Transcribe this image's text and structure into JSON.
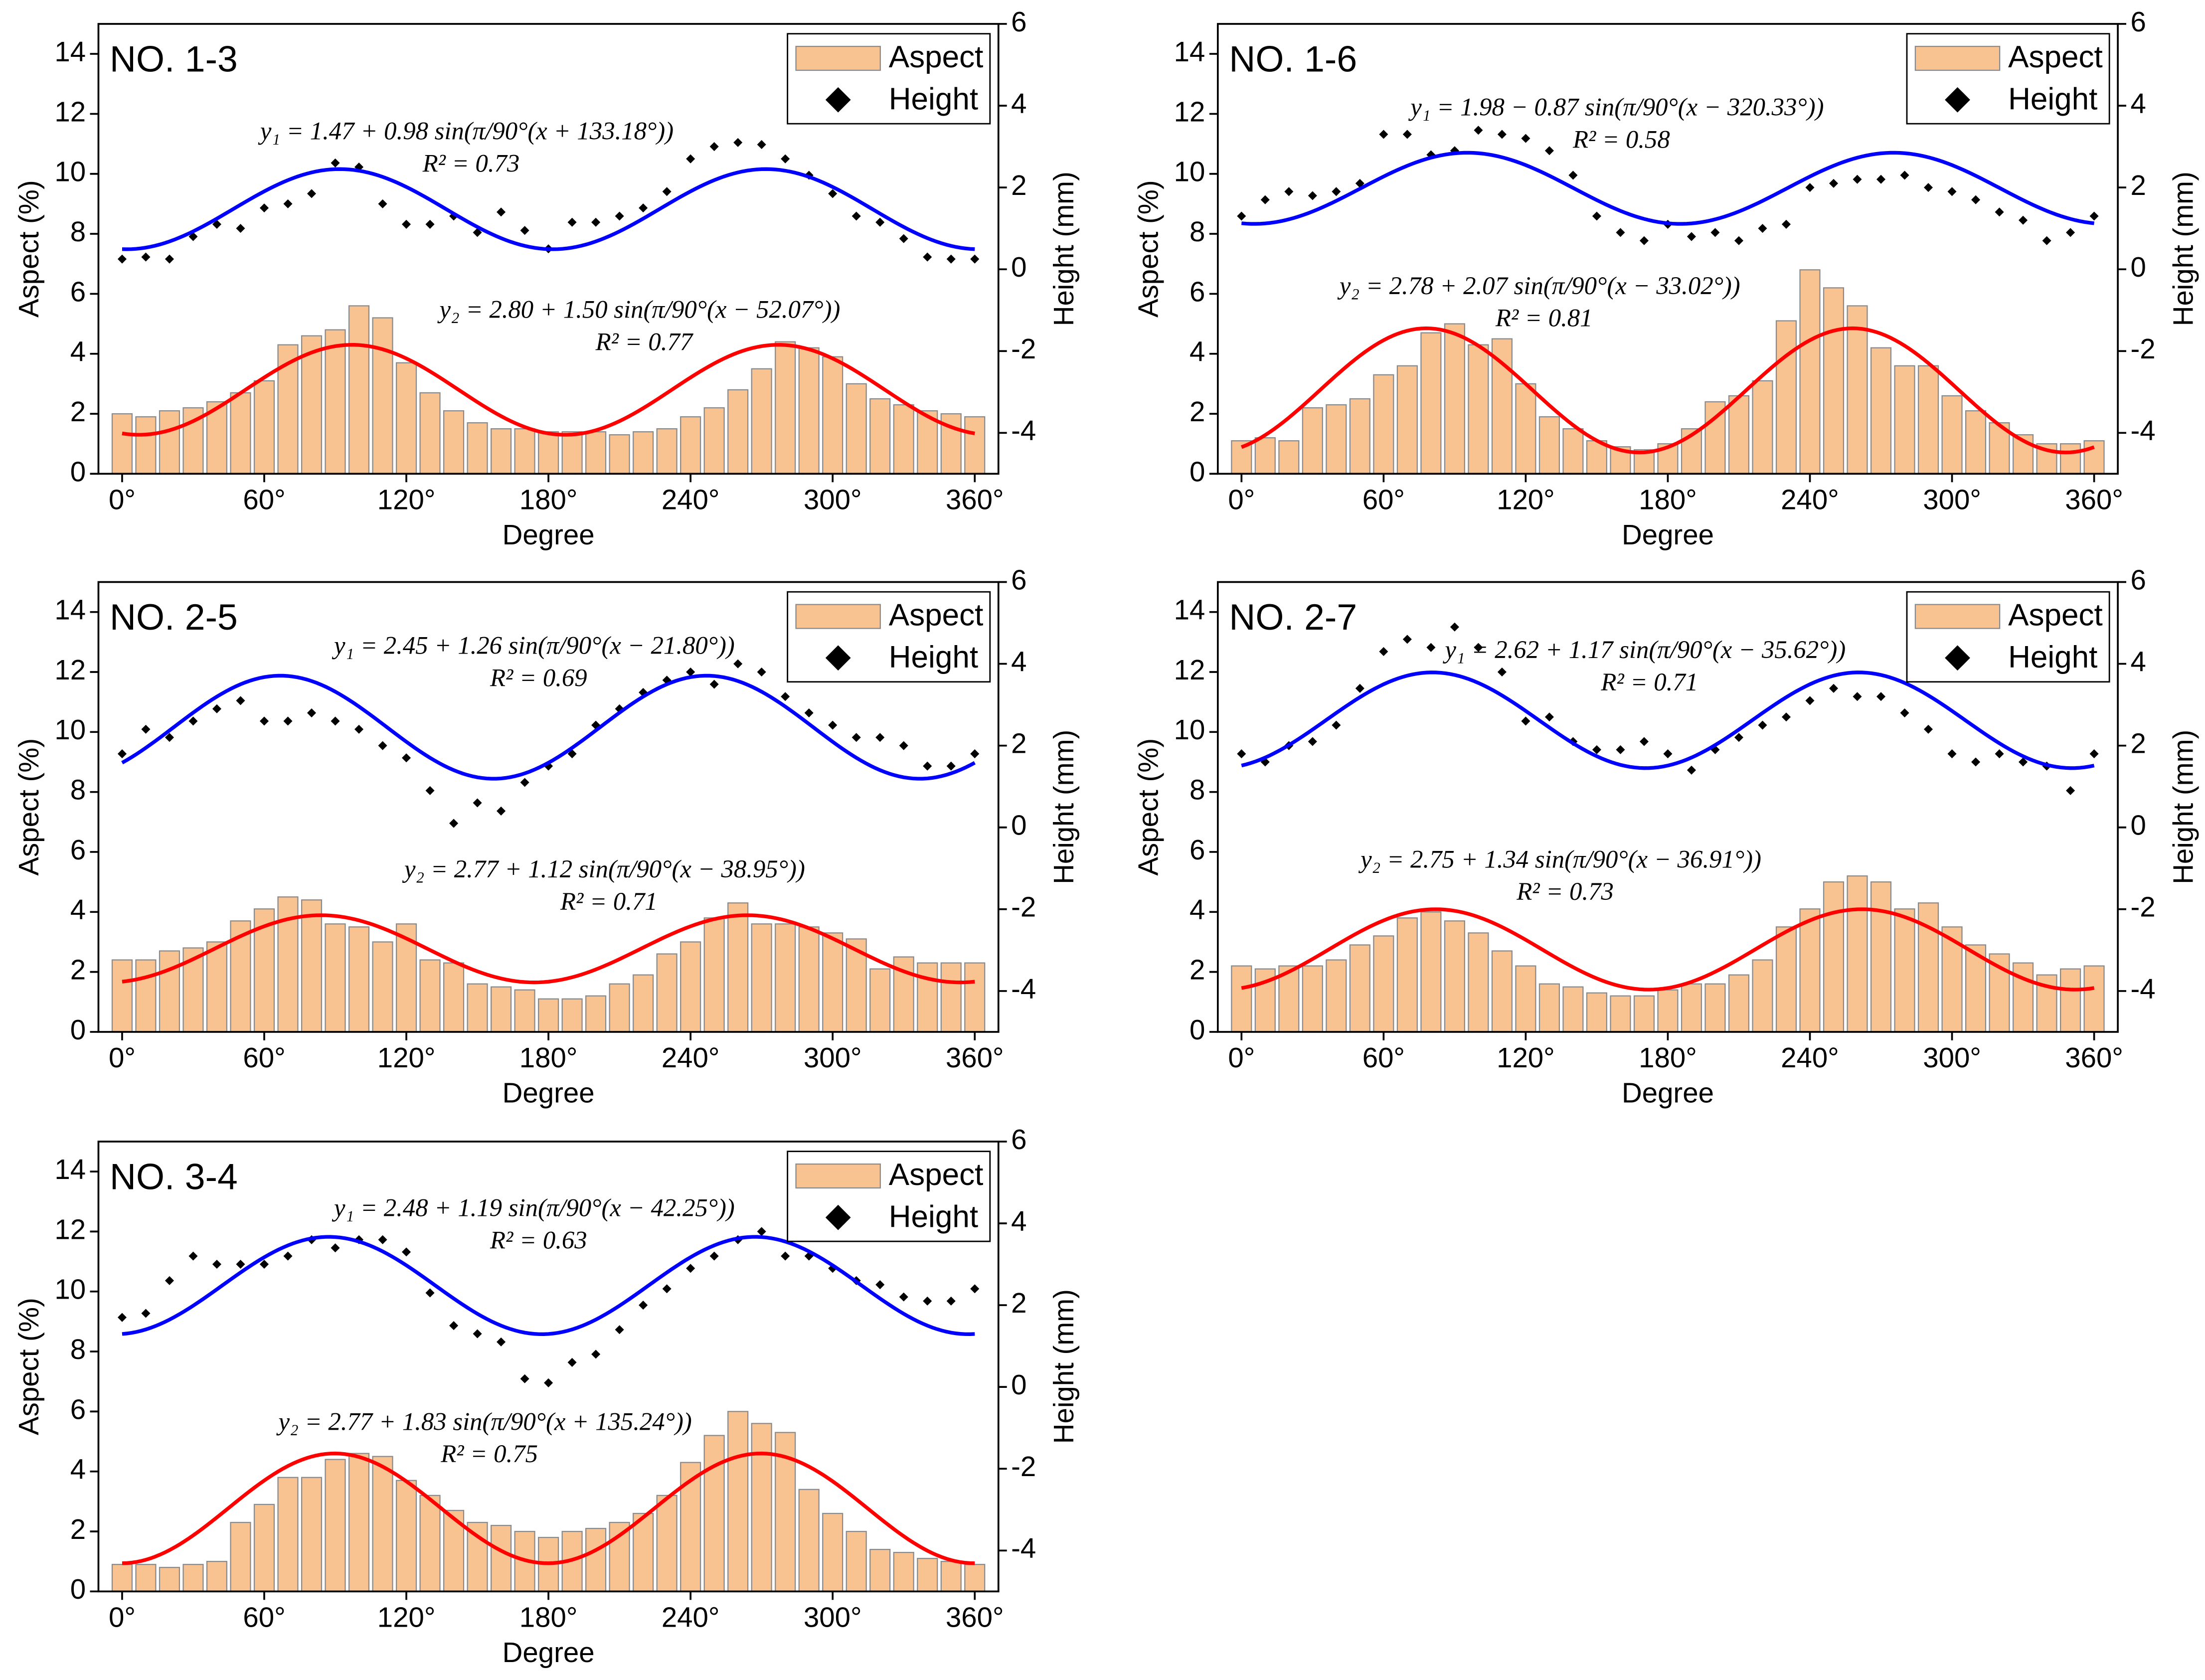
{
  "chart_data": [
    {
      "type": "bar-scatter",
      "title": "NO. 1-3",
      "xlabel": "Degree",
      "ylabel": "Aspect (%)",
      "y2label": "Height (mm)",
      "x": [
        0,
        10,
        20,
        30,
        40,
        50,
        60,
        70,
        80,
        90,
        100,
        110,
        120,
        130,
        140,
        150,
        160,
        170,
        180,
        190,
        200,
        210,
        220,
        230,
        240,
        250,
        260,
        270,
        280,
        290,
        300,
        310,
        320,
        330,
        340,
        350,
        360
      ],
      "xlim": [
        -10,
        370
      ],
      "xticks": [
        {
          "value": 0,
          "label": "0°"
        },
        {
          "value": 60,
          "label": "60°"
        },
        {
          "value": 120,
          "label": "120°"
        },
        {
          "value": 180,
          "label": "180°"
        },
        {
          "value": 240,
          "label": "240°"
        },
        {
          "value": 300,
          "label": "300°"
        },
        {
          "value": 360,
          "label": "360°"
        }
      ],
      "ylim": [
        0,
        15
      ],
      "yticks": [
        0,
        2,
        4,
        6,
        8,
        10,
        12,
        14
      ],
      "y2lim": [
        -5,
        6
      ],
      "y2ticks": [
        -4,
        -2,
        0,
        2,
        4,
        6
      ],
      "legend": "upper right",
      "series": [
        {
          "name": "Aspect",
          "type": "bar",
          "color": "#f9c291",
          "values": [
            2.0,
            1.9,
            2.1,
            2.2,
            2.4,
            2.7,
            3.1,
            4.3,
            4.6,
            4.8,
            5.6,
            5.2,
            3.7,
            2.7,
            2.1,
            1.7,
            1.5,
            1.5,
            1.4,
            1.4,
            1.4,
            1.3,
            1.4,
            1.5,
            1.9,
            2.2,
            2.8,
            3.5,
            4.4,
            4.2,
            3.9,
            3.0,
            2.5,
            2.3,
            2.1,
            2.0,
            1.9
          ]
        },
        {
          "name": "Height",
          "type": "scatter",
          "color": "#000000",
          "axis": "y2",
          "values": [
            0.25,
            0.3,
            0.25,
            0.8,
            1.1,
            1.0,
            1.5,
            1.6,
            1.85,
            2.6,
            2.5,
            1.6,
            1.1,
            1.1,
            1.3,
            0.9,
            1.4,
            0.95,
            0.5,
            1.15,
            1.15,
            1.3,
            1.5,
            1.9,
            2.7,
            3.0,
            3.1,
            3.05,
            2.7,
            2.3,
            1.85,
            1.3,
            1.15,
            0.75,
            0.3,
            0.25,
            0.25
          ]
        }
      ],
      "fits": [
        {
          "axis": "y2",
          "color": "#0000ff",
          "equation": "y₁ = 1.47 + 0.98 sin(π/90°(x + 133.18°))",
          "r2_label": "R² = 0.73",
          "intercept": 1.47,
          "amplitude": 0.98,
          "divisor": 90,
          "shift": 133.18
        },
        {
          "axis": "y",
          "color": "#ff0000",
          "equation": "y₂ = 2.80 + 1.50 sin(π/90°(x − 52.07°))",
          "r2_label": "R² = 0.77",
          "intercept": 2.8,
          "amplitude": 1.5,
          "divisor": 90,
          "shift": -52.07
        }
      ]
    },
    {
      "type": "bar-scatter",
      "title": "NO. 1-6",
      "xlabel": "Degree",
      "ylabel": "Aspect (%)",
      "y2label": "Height (mm)",
      "x": [
        0,
        10,
        20,
        30,
        40,
        50,
        60,
        70,
        80,
        90,
        100,
        110,
        120,
        130,
        140,
        150,
        160,
        170,
        180,
        190,
        200,
        210,
        220,
        230,
        240,
        250,
        260,
        270,
        280,
        290,
        300,
        310,
        320,
        330,
        340,
        350,
        360
      ],
      "xlim": [
        -10,
        370
      ],
      "xticks": [
        {
          "value": 0,
          "label": "0°"
        },
        {
          "value": 60,
          "label": "60°"
        },
        {
          "value": 120,
          "label": "120°"
        },
        {
          "value": 180,
          "label": "180°"
        },
        {
          "value": 240,
          "label": "240°"
        },
        {
          "value": 300,
          "label": "300°"
        },
        {
          "value": 360,
          "label": "360°"
        }
      ],
      "ylim": [
        0,
        15
      ],
      "yticks": [
        0,
        2,
        4,
        6,
        8,
        10,
        12,
        14
      ],
      "y2lim": [
        -5,
        6
      ],
      "y2ticks": [
        -4,
        -2,
        0,
        2,
        4,
        6
      ],
      "legend": "upper right",
      "series": [
        {
          "name": "Aspect",
          "type": "bar",
          "color": "#f9c291",
          "values": [
            1.1,
            1.2,
            1.1,
            2.2,
            2.3,
            2.5,
            3.3,
            3.6,
            4.7,
            5.0,
            4.3,
            4.5,
            3.0,
            1.9,
            1.5,
            1.1,
            0.9,
            0.8,
            1.0,
            1.5,
            2.4,
            2.6,
            3.1,
            5.1,
            6.8,
            6.2,
            5.6,
            4.2,
            3.6,
            3.6,
            2.6,
            2.1,
            1.7,
            1.3,
            1.0,
            1.0,
            1.1
          ]
        },
        {
          "name": "Height",
          "type": "scatter",
          "color": "#000000",
          "axis": "y2",
          "values": [
            1.3,
            1.7,
            1.9,
            1.8,
            1.9,
            2.1,
            3.3,
            3.3,
            2.8,
            2.9,
            3.4,
            3.3,
            3.2,
            2.9,
            2.3,
            1.3,
            0.9,
            0.7,
            1.1,
            0.8,
            0.9,
            0.7,
            1.0,
            1.1,
            2.0,
            2.1,
            2.2,
            2.2,
            2.3,
            2.0,
            1.9,
            1.7,
            1.4,
            1.2,
            0.7,
            0.9,
            1.3
          ]
        }
      ],
      "fits": [
        {
          "axis": "y2",
          "color": "#0000ff",
          "equation": "y₁ = 1.98 − 0.87 sin(π/90°(x − 320.33°))",
          "r2_label": "R² = 0.58",
          "intercept": 1.98,
          "amplitude": -0.87,
          "divisor": 90,
          "shift": -320.33
        },
        {
          "axis": "y",
          "color": "#ff0000",
          "equation": "y₂ = 2.78 + 2.07 sin(π/90°(x − 33.02°))",
          "r2_label": "R² = 0.81",
          "intercept": 2.78,
          "amplitude": 2.07,
          "divisor": 90,
          "shift": -33.02
        }
      ]
    },
    {
      "type": "bar-scatter",
      "title": "NO. 2-5",
      "xlabel": "Degree",
      "ylabel": "Aspect (%)",
      "y2label": "Height (mm)",
      "x": [
        0,
        10,
        20,
        30,
        40,
        50,
        60,
        70,
        80,
        90,
        100,
        110,
        120,
        130,
        140,
        150,
        160,
        170,
        180,
        190,
        200,
        210,
        220,
        230,
        240,
        250,
        260,
        270,
        280,
        290,
        300,
        310,
        320,
        330,
        340,
        350,
        360
      ],
      "xlim": [
        -10,
        370
      ],
      "xticks": [
        {
          "value": 0,
          "label": "0°"
        },
        {
          "value": 60,
          "label": "60°"
        },
        {
          "value": 120,
          "label": "120°"
        },
        {
          "value": 180,
          "label": "180°"
        },
        {
          "value": 240,
          "label": "240°"
        },
        {
          "value": 300,
          "label": "300°"
        },
        {
          "value": 360,
          "label": "360°"
        }
      ],
      "ylim": [
        0,
        15
      ],
      "yticks": [
        0,
        2,
        4,
        6,
        8,
        10,
        12,
        14
      ],
      "y2lim": [
        -5,
        6
      ],
      "y2ticks": [
        -4,
        -2,
        0,
        2,
        4,
        6
      ],
      "legend": "upper right",
      "series": [
        {
          "name": "Aspect",
          "type": "bar",
          "color": "#f9c291",
          "values": [
            2.4,
            2.4,
            2.7,
            2.8,
            3.0,
            3.7,
            4.1,
            4.5,
            4.4,
            3.6,
            3.5,
            3.0,
            3.6,
            2.4,
            2.3,
            1.6,
            1.5,
            1.4,
            1.1,
            1.1,
            1.2,
            1.6,
            1.9,
            2.6,
            3.0,
            3.8,
            4.3,
            3.6,
            3.6,
            3.5,
            3.3,
            3.1,
            2.1,
            2.5,
            2.3,
            2.3,
            2.3
          ]
        },
        {
          "name": "Height",
          "type": "scatter",
          "color": "#000000",
          "axis": "y2",
          "values": [
            1.8,
            2.4,
            2.2,
            2.6,
            2.9,
            3.1,
            2.6,
            2.6,
            2.8,
            2.6,
            2.4,
            2.0,
            1.7,
            0.9,
            0.1,
            0.6,
            0.4,
            1.1,
            1.5,
            1.8,
            2.5,
            2.9,
            3.3,
            3.6,
            3.8,
            3.5,
            4.0,
            3.8,
            3.2,
            2.8,
            2.5,
            2.2,
            2.2,
            2.0,
            1.5,
            1.5,
            1.8
          ]
        }
      ],
      "fits": [
        {
          "axis": "y2",
          "color": "#0000ff",
          "equation": "y₁ = 2.45 + 1.26 sin(π/90°(x − 21.80°))",
          "r2_label": "R² = 0.69",
          "intercept": 2.45,
          "amplitude": 1.26,
          "divisor": 90,
          "shift": -21.8
        },
        {
          "axis": "y",
          "color": "#ff0000",
          "equation": "y₂ = 2.77 + 1.12 sin(π/90°(x − 38.95°))",
          "r2_label": "R² = 0.71",
          "intercept": 2.77,
          "amplitude": 1.12,
          "divisor": 90,
          "shift": -38.95
        }
      ]
    },
    {
      "type": "bar-scatter",
      "title": "NO. 2-7",
      "xlabel": "Degree",
      "ylabel": "Aspect (%)",
      "y2label": "Height (mm)",
      "x": [
        0,
        10,
        20,
        30,
        40,
        50,
        60,
        70,
        80,
        90,
        100,
        110,
        120,
        130,
        140,
        150,
        160,
        170,
        180,
        190,
        200,
        210,
        220,
        230,
        240,
        250,
        260,
        270,
        280,
        290,
        300,
        310,
        320,
        330,
        340,
        350,
        360
      ],
      "xlim": [
        -10,
        370
      ],
      "xticks": [
        {
          "value": 0,
          "label": "0°"
        },
        {
          "value": 60,
          "label": "60°"
        },
        {
          "value": 120,
          "label": "120°"
        },
        {
          "value": 180,
          "label": "180°"
        },
        {
          "value": 240,
          "label": "240°"
        },
        {
          "value": 300,
          "label": "300°"
        },
        {
          "value": 360,
          "label": "360°"
        }
      ],
      "ylim": [
        0,
        15
      ],
      "yticks": [
        0,
        2,
        4,
        6,
        8,
        10,
        12,
        14
      ],
      "y2lim": [
        -5,
        6
      ],
      "y2ticks": [
        -4,
        -2,
        0,
        2,
        4,
        6
      ],
      "legend": "upper right",
      "series": [
        {
          "name": "Aspect",
          "type": "bar",
          "color": "#f9c291",
          "values": [
            2.2,
            2.1,
            2.2,
            2.2,
            2.4,
            2.9,
            3.2,
            3.8,
            4.0,
            3.7,
            3.3,
            2.7,
            2.2,
            1.6,
            1.5,
            1.3,
            1.2,
            1.2,
            1.4,
            1.6,
            1.6,
            1.9,
            2.4,
            3.5,
            4.1,
            5.0,
            5.2,
            5.0,
            4.1,
            4.3,
            3.5,
            2.9,
            2.6,
            2.3,
            1.9,
            2.1,
            2.2
          ]
        },
        {
          "name": "Height",
          "type": "scatter",
          "color": "#000000",
          "axis": "y2",
          "values": [
            1.8,
            1.6,
            2.0,
            2.1,
            2.5,
            3.4,
            4.3,
            4.6,
            4.4,
            4.9,
            4.4,
            3.8,
            2.6,
            2.7,
            2.1,
            1.9,
            1.9,
            2.1,
            1.8,
            1.4,
            1.9,
            2.2,
            2.5,
            2.7,
            3.1,
            3.4,
            3.2,
            3.2,
            2.8,
            2.4,
            1.8,
            1.6,
            1.8,
            1.6,
            1.5,
            0.9,
            1.8
          ]
        }
      ],
      "fits": [
        {
          "axis": "y2",
          "color": "#0000ff",
          "equation": "y₁ = 2.62 + 1.17 sin(π/90°(x − 35.62°))",
          "r2_label": "R² = 0.71",
          "intercept": 2.62,
          "amplitude": 1.17,
          "divisor": 90,
          "shift": -35.62
        },
        {
          "axis": "y",
          "color": "#ff0000",
          "equation": "y₂ = 2.75 + 1.34 sin(π/90°(x − 36.91°))",
          "r2_label": "R² = 0.73",
          "intercept": 2.75,
          "amplitude": 1.34,
          "divisor": 90,
          "shift": -36.91
        }
      ]
    },
    {
      "type": "bar-scatter",
      "title": "NO. 3-4",
      "xlabel": "Degree",
      "ylabel": "Aspect (%)",
      "y2label": "Height (mm)",
      "x": [
        0,
        10,
        20,
        30,
        40,
        50,
        60,
        70,
        80,
        90,
        100,
        110,
        120,
        130,
        140,
        150,
        160,
        170,
        180,
        190,
        200,
        210,
        220,
        230,
        240,
        250,
        260,
        270,
        280,
        290,
        300,
        310,
        320,
        330,
        340,
        350,
        360
      ],
      "xlim": [
        -10,
        370
      ],
      "xticks": [
        {
          "value": 0,
          "label": "0°"
        },
        {
          "value": 60,
          "label": "60°"
        },
        {
          "value": 120,
          "label": "120°"
        },
        {
          "value": 180,
          "label": "180°"
        },
        {
          "value": 240,
          "label": "240°"
        },
        {
          "value": 300,
          "label": "300°"
        },
        {
          "value": 360,
          "label": "360°"
        }
      ],
      "ylim": [
        0,
        15
      ],
      "yticks": [
        0,
        2,
        4,
        6,
        8,
        10,
        12,
        14
      ],
      "y2lim": [
        -5,
        6
      ],
      "y2ticks": [
        -4,
        -2,
        0,
        2,
        4,
        6
      ],
      "legend": "upper right",
      "series": [
        {
          "name": "Aspect",
          "type": "bar",
          "color": "#f9c291",
          "values": [
            0.9,
            0.9,
            0.8,
            0.9,
            1.0,
            2.3,
            2.9,
            3.8,
            3.8,
            4.4,
            4.6,
            4.5,
            3.7,
            3.2,
            2.7,
            2.3,
            2.2,
            2.0,
            1.8,
            2.0,
            2.1,
            2.3,
            2.6,
            3.2,
            4.3,
            5.2,
            6.0,
            5.6,
            5.3,
            3.4,
            2.6,
            2.0,
            1.4,
            1.3,
            1.1,
            1.0,
            0.9
          ]
        },
        {
          "name": "Height",
          "type": "scatter",
          "color": "#000000",
          "axis": "y2",
          "values": [
            1.7,
            1.8,
            2.6,
            3.2,
            3.0,
            3.0,
            3.0,
            3.2,
            3.6,
            3.4,
            3.6,
            3.6,
            3.3,
            2.3,
            1.5,
            1.3,
            1.1,
            0.2,
            0.1,
            0.6,
            0.8,
            1.4,
            2.0,
            2.4,
            2.9,
            3.2,
            3.6,
            3.8,
            3.2,
            3.2,
            2.9,
            2.6,
            2.5,
            2.2,
            2.1,
            2.1,
            2.4
          ]
        }
      ],
      "fits": [
        {
          "axis": "y2",
          "color": "#0000ff",
          "equation": "y₁ = 2.48 + 1.19 sin(π/90°(x − 42.25°))",
          "r2_label": "R² = 0.63",
          "intercept": 2.48,
          "amplitude": 1.19,
          "divisor": 90,
          "shift": -42.25
        },
        {
          "axis": "y",
          "color": "#ff0000",
          "equation": "y₂ = 2.77 + 1.83 sin(π/90°(x + 135.24°))",
          "r2_label": "R² = 0.75",
          "intercept": 2.77,
          "amplitude": 1.83,
          "divisor": 90,
          "shift": 135.24
        }
      ]
    }
  ]
}
